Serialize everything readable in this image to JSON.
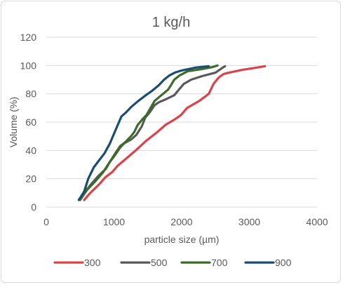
{
  "chart_data": {
    "type": "line",
    "title": "1 kg/h",
    "xlabel": "particle size (µm)",
    "ylabel": "Volume (%)",
    "xlim": [
      0,
      4000
    ],
    "ylim": [
      0,
      120
    ],
    "x_ticks": [
      "0",
      "1000",
      "2000",
      "3000",
      "4000"
    ],
    "y_ticks": [
      "0",
      "20",
      "40",
      "60",
      "80",
      "100",
      "120"
    ],
    "grid": "horizontal",
    "legend_position": "bottom",
    "series": [
      {
        "name": "300",
        "color": "#d9434a",
        "points": [
          [
            560,
            5
          ],
          [
            650,
            10
          ],
          [
            780,
            16
          ],
          [
            870,
            21
          ],
          [
            980,
            25
          ],
          [
            1050,
            29
          ],
          [
            1150,
            33
          ],
          [
            1320,
            40
          ],
          [
            1480,
            47
          ],
          [
            1640,
            53
          ],
          [
            1760,
            58
          ],
          [
            1900,
            62
          ],
          [
            1990,
            65
          ],
          [
            2080,
            70
          ],
          [
            2260,
            75
          ],
          [
            2400,
            80
          ],
          [
            2470,
            87
          ],
          [
            2520,
            90
          ],
          [
            2560,
            92
          ],
          [
            2620,
            94
          ],
          [
            2700,
            95
          ],
          [
            2900,
            97
          ],
          [
            3100,
            98.5
          ],
          [
            3230,
            99.5
          ]
        ]
      },
      {
        "name": "500",
        "color": "#595959",
        "points": [
          [
            500,
            5
          ],
          [
            560,
            10
          ],
          [
            660,
            16
          ],
          [
            770,
            22
          ],
          [
            880,
            27
          ],
          [
            940,
            32
          ],
          [
            1020,
            37
          ],
          [
            1090,
            42
          ],
          [
            1150,
            45
          ],
          [
            1260,
            48
          ],
          [
            1330,
            51
          ],
          [
            1410,
            57
          ],
          [
            1460,
            63
          ],
          [
            1530,
            67
          ],
          [
            1600,
            72
          ],
          [
            1660,
            74
          ],
          [
            1760,
            76
          ],
          [
            1890,
            79
          ],
          [
            1960,
            83
          ],
          [
            2030,
            87
          ],
          [
            2140,
            90
          ],
          [
            2300,
            92.5
          ],
          [
            2500,
            95
          ],
          [
            2590,
            98
          ],
          [
            2640,
            99.5
          ]
        ]
      },
      {
        "name": "700",
        "color": "#3d6b2a",
        "points": [
          [
            500,
            5
          ],
          [
            600,
            12
          ],
          [
            720,
            18
          ],
          [
            830,
            24
          ],
          [
            940,
            32
          ],
          [
            1020,
            38
          ],
          [
            1090,
            43
          ],
          [
            1170,
            46
          ],
          [
            1250,
            50
          ],
          [
            1300,
            53
          ],
          [
            1350,
            58
          ],
          [
            1420,
            62
          ],
          [
            1480,
            65
          ],
          [
            1540,
            70
          ],
          [
            1600,
            75
          ],
          [
            1700,
            79
          ],
          [
            1800,
            83
          ],
          [
            1840,
            86
          ],
          [
            1890,
            90
          ],
          [
            1970,
            93
          ],
          [
            2090,
            96
          ],
          [
            2300,
            97.5
          ],
          [
            2460,
            99
          ],
          [
            2530,
            100
          ]
        ]
      },
      {
        "name": "900",
        "color": "#1b4e6e",
        "points": [
          [
            480,
            5
          ],
          [
            560,
            11
          ],
          [
            620,
            20
          ],
          [
            700,
            28
          ],
          [
            780,
            33
          ],
          [
            860,
            38
          ],
          [
            940,
            45
          ],
          [
            1020,
            54
          ],
          [
            1110,
            64
          ],
          [
            1180,
            67
          ],
          [
            1260,
            71
          ],
          [
            1360,
            75
          ],
          [
            1470,
            79
          ],
          [
            1560,
            82
          ],
          [
            1660,
            86
          ],
          [
            1740,
            90
          ],
          [
            1820,
            93
          ],
          [
            1900,
            95
          ],
          [
            2000,
            96.5
          ],
          [
            2100,
            97.5
          ],
          [
            2200,
            98.5
          ],
          [
            2300,
            99
          ],
          [
            2400,
            99.5
          ]
        ]
      }
    ]
  }
}
